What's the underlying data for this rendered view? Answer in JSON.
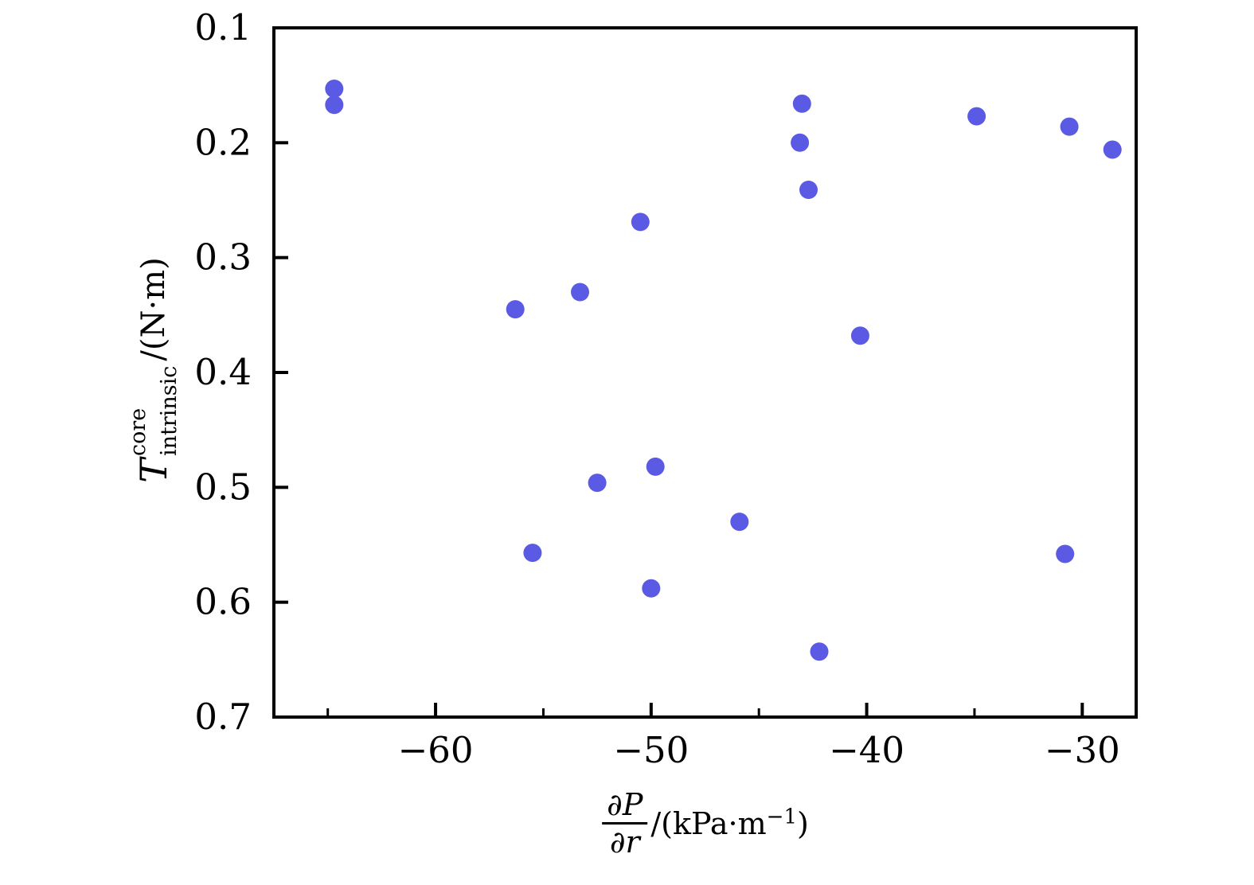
{
  "chart_data": {
    "type": "scatter",
    "title": "",
    "xlabel": "∂P/∂r /(kPa·m⁻¹)",
    "ylabel": "T_intrinsic^core /(N·m)",
    "xlim": [
      -67.5,
      -27.5
    ],
    "ylim_top_to_bottom": [
      0.1,
      0.7
    ],
    "y_axis_inverted": true,
    "grid": false,
    "legend": null,
    "marker_color": "#5b5ae4",
    "marker_radius_px": 11.5,
    "x_ticks_major": [
      -60,
      -50,
      -40,
      -30
    ],
    "x_tick_labels": [
      "−60",
      "−50",
      "−40",
      "−30"
    ],
    "x_ticks_minor": [
      -65,
      -55,
      -45,
      -35
    ],
    "y_ticks_major": [
      0.1,
      0.2,
      0.3,
      0.4,
      0.5,
      0.6,
      0.7
    ],
    "y_tick_labels": [
      "0.1",
      "0.2",
      "0.3",
      "0.4",
      "0.5",
      "0.6",
      "0.7"
    ],
    "points": [
      {
        "x": -64.7,
        "y": 0.153
      },
      {
        "x": -64.7,
        "y": 0.167
      },
      {
        "x": -56.3,
        "y": 0.345
      },
      {
        "x": -55.5,
        "y": 0.557
      },
      {
        "x": -53.3,
        "y": 0.33
      },
      {
        "x": -52.5,
        "y": 0.496
      },
      {
        "x": -50.5,
        "y": 0.269
      },
      {
        "x": -50.0,
        "y": 0.588
      },
      {
        "x": -49.8,
        "y": 0.482
      },
      {
        "x": -45.9,
        "y": 0.53
      },
      {
        "x": -43.1,
        "y": 0.2
      },
      {
        "x": -43.0,
        "y": 0.166
      },
      {
        "x": -42.7,
        "y": 0.241
      },
      {
        "x": -42.2,
        "y": 0.643
      },
      {
        "x": -40.3,
        "y": 0.368
      },
      {
        "x": -34.9,
        "y": 0.177
      },
      {
        "x": -30.8,
        "y": 0.558
      },
      {
        "x": -30.6,
        "y": 0.186
      },
      {
        "x": -28.6,
        "y": 0.206
      }
    ]
  },
  "axis_labels": {
    "x": {
      "numerator": "∂P",
      "denominator": "∂r",
      "unit_prefix": "/(kPa·m",
      "unit_exponent": "−1",
      "unit_suffix": ")"
    },
    "y": {
      "symbol": "T",
      "superscript": "core",
      "subscript": "intrinsic",
      "unit": "/(N·m)"
    }
  }
}
